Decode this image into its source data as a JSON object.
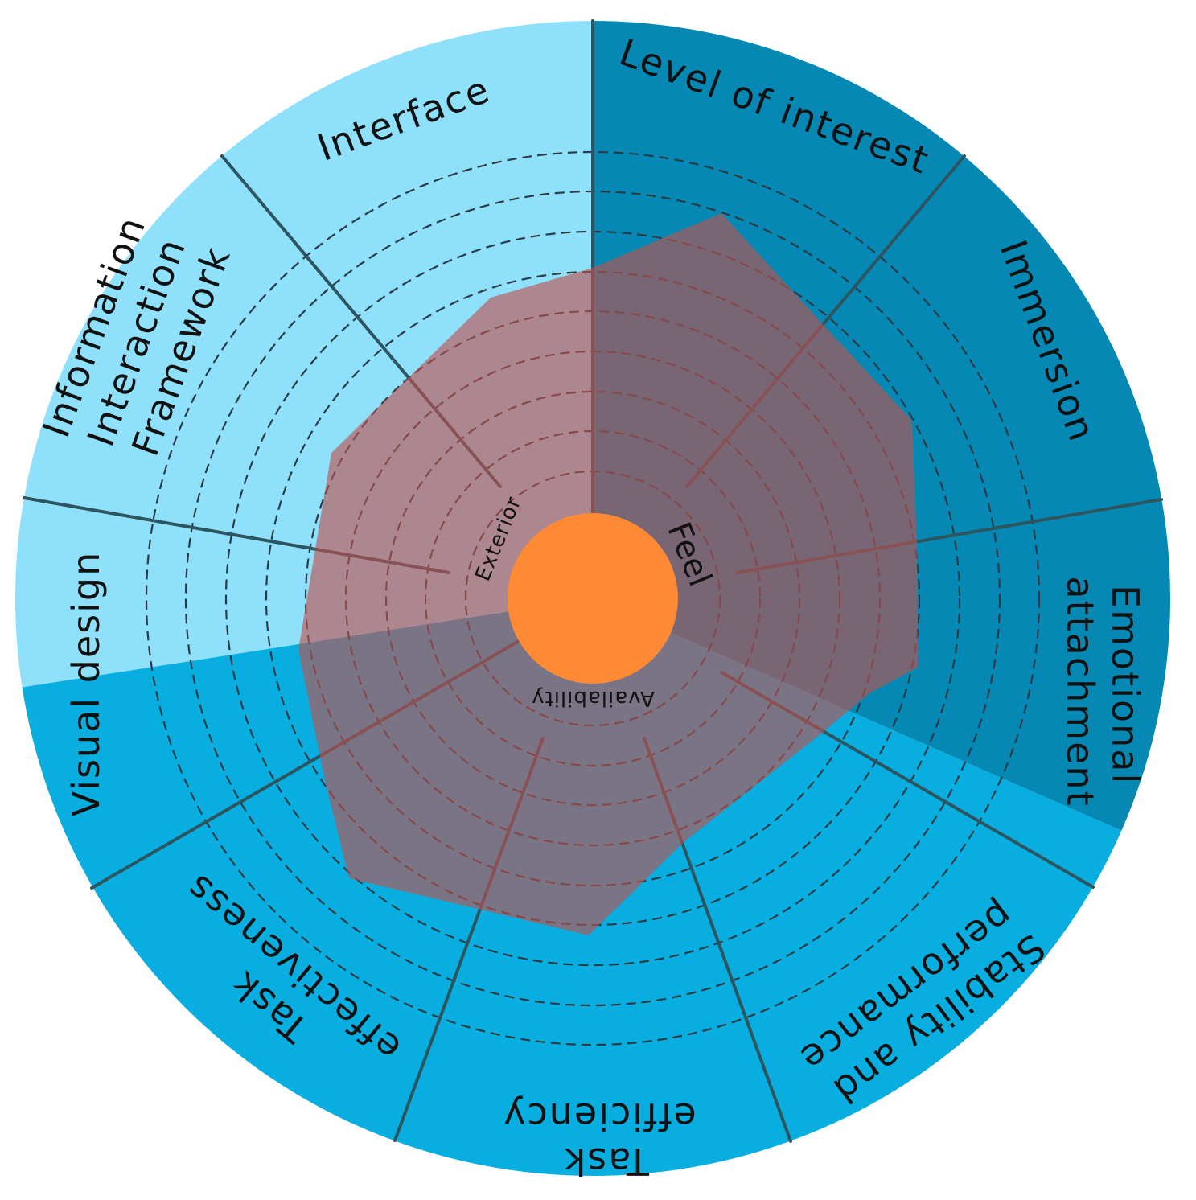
{
  "diagram": {
    "center_color": "#ff8a35",
    "overlay_color": "#c0504d",
    "core_labels": [
      {
        "id": "exterior",
        "text": "Exterior"
      },
      {
        "id": "feel",
        "text": "Feel"
      },
      {
        "id": "availability",
        "text": "Availability"
      }
    ],
    "segments": [
      {
        "id": "interface",
        "lines": [
          "Interface"
        ],
        "color": "#8ee0fb",
        "group": "exterior",
        "level": 0.63
      },
      {
        "id": "information-interaction-framework",
        "lines": [
          "Information",
          "Interaction",
          "Framework"
        ],
        "color": "#8ee0fb",
        "group": "exterior",
        "level": 0.63
      },
      {
        "id": "visual-design",
        "lines": [
          "Visual design"
        ],
        "color": "#8ee0fb",
        "group": "exterior",
        "level": 0.63
      },
      {
        "id": "task-effectiveness",
        "lines": [
          "Task",
          "effectiveness"
        ],
        "color": "#08aee0",
        "group": "availability",
        "level": 0.63
      },
      {
        "id": "task-efficiency",
        "lines": [
          "Task",
          "efficiency"
        ],
        "color": "#08aee0",
        "group": "availability",
        "level": 0.63
      },
      {
        "id": "stability-and-performance",
        "lines": [
          "Stability and",
          "performance"
        ],
        "color": "#08aee0",
        "group": "availability",
        "level": 0.63
      },
      {
        "id": "emotional-attachment",
        "lines": [
          "Emotional",
          "attachment"
        ],
        "color": "#0589b4",
        "group": "feel",
        "level": 0.69
      },
      {
        "id": "immersion",
        "lines": [
          "Immersion"
        ],
        "color": "#0589b4",
        "group": "feel",
        "level": 0.69
      },
      {
        "id": "level-of-interest",
        "lines": [
          "Level of interest"
        ],
        "color": "#0589b4",
        "group": "feel",
        "level": 0.69
      }
    ]
  }
}
